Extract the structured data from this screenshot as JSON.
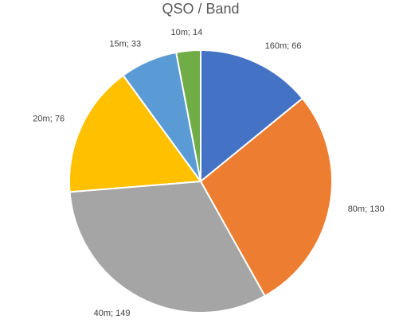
{
  "chart_data": {
    "type": "pie",
    "title": "QSO / Band",
    "categories": [
      "160m",
      "80m",
      "40m",
      "20m",
      "15m",
      "10m"
    ],
    "values": [
      66,
      130,
      149,
      76,
      33,
      14
    ],
    "colors": [
      "#4472c4",
      "#ed7d31",
      "#a5a5a5",
      "#ffc000",
      "#5b9bd5",
      "#70ad47"
    ]
  }
}
